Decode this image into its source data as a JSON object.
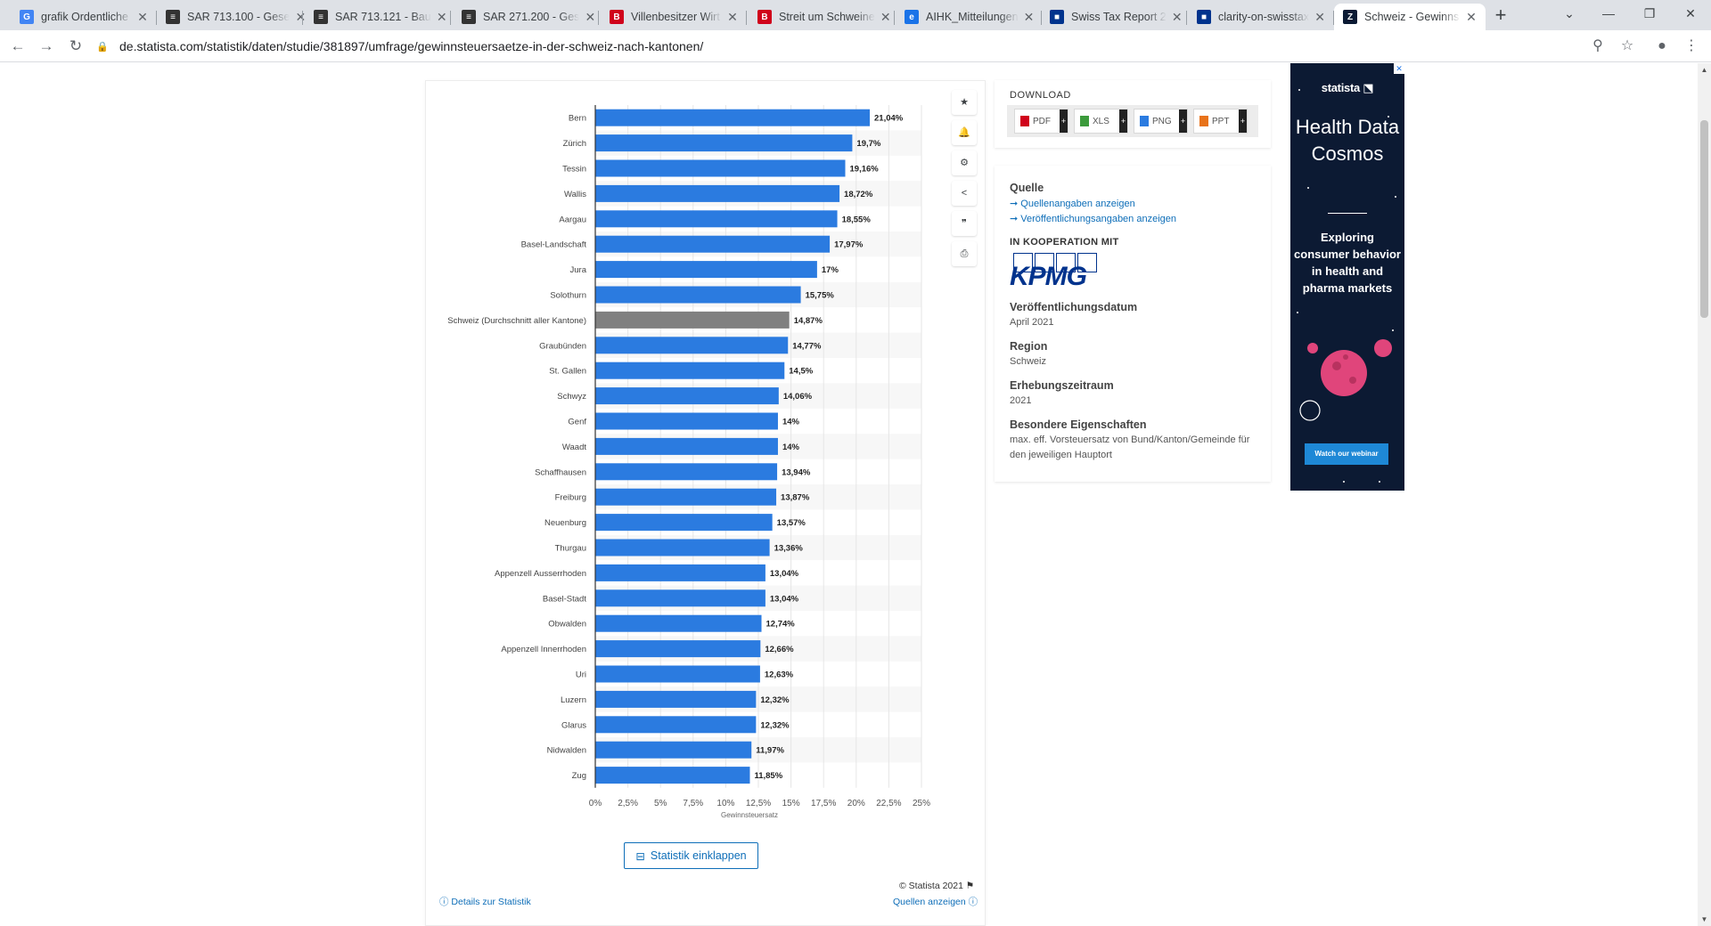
{
  "browser": {
    "tabs": [
      {
        "title": "grafik Ordentliche",
        "favicon": "G",
        "favicon_color": "#4285f4",
        "close": "✕"
      },
      {
        "title": "SAR 713.100 - Gese",
        "favicon": "≡",
        "favicon_color": "#333333",
        "close": "✕"
      },
      {
        "title": "SAR 713.121 - Bau",
        "favicon": "≡",
        "favicon_color": "#333333",
        "close": "✕"
      },
      {
        "title": "SAR 271.200 - Ges",
        "favicon": "≡",
        "favicon_color": "#333333",
        "close": "✕"
      },
      {
        "title": "Villenbesitzer Wirt",
        "favicon": "B",
        "favicon_color": "#d0021b",
        "close": "✕"
      },
      {
        "title": "Streit um Schweine",
        "favicon": "B",
        "favicon_color": "#d0021b",
        "close": "✕"
      },
      {
        "title": "AIHK_Mitteilungen",
        "favicon": "e",
        "favicon_color": "#1a73e8",
        "close": "✕"
      },
      {
        "title": "Swiss Tax Report 2",
        "favicon": "■",
        "favicon_color": "#00338d",
        "close": "✕"
      },
      {
        "title": "clarity-on-swisstax",
        "favicon": "■",
        "favicon_color": "#00338d",
        "close": "✕"
      },
      {
        "title": "Schweiz - Gewinns",
        "favicon": "Z",
        "favicon_color": "#0a1a33",
        "close": "✕"
      }
    ],
    "url": "de.statista.com/statistik/daten/studie/381897/umfrage/gewinnsteuersaetze-in-der-schweiz-nach-kantonen/",
    "new_tab": "+"
  },
  "chart_data": {
    "type": "bar",
    "orientation": "horizontal",
    "categories": [
      "Bern",
      "Zürich",
      "Tessin",
      "Wallis",
      "Aargau",
      "Basel-Landschaft",
      "Jura",
      "Solothurn",
      "Schweiz (Durchschnitt aller Kantone)",
      "Graubünden",
      "St. Gallen",
      "Schwyz",
      "Genf",
      "Waadt",
      "Schaffhausen",
      "Freiburg",
      "Neuenburg",
      "Thurgau",
      "Appenzell Ausserrhoden",
      "Basel-Stadt",
      "Obwalden",
      "Appenzell Innerrhoden",
      "Uri",
      "Luzern",
      "Glarus",
      "Nidwalden",
      "Zug"
    ],
    "values": [
      21.04,
      19.7,
      19.16,
      18.72,
      18.55,
      17.97,
      17,
      15.75,
      14.87,
      14.77,
      14.5,
      14.06,
      14,
      14,
      13.94,
      13.87,
      13.57,
      13.36,
      13.04,
      13.04,
      12.74,
      12.66,
      12.63,
      12.32,
      12.32,
      11.97,
      11.85
    ],
    "value_labels": [
      "21,04%",
      "19,7%",
      "19,16%",
      "18,72%",
      "18,55%",
      "17,97%",
      "17%",
      "15,75%",
      "14,87%",
      "14,77%",
      "14,5%",
      "14,06%",
      "14%",
      "14%",
      "13,94%",
      "13,87%",
      "13,57%",
      "13,36%",
      "13,04%",
      "13,04%",
      "12,74%",
      "12,66%",
      "12,63%",
      "12,32%",
      "12,32%",
      "11,97%",
      "11,85%"
    ],
    "highlight_category": "Schweiz (Durchschnitt aller Kantone)",
    "xlabel": "Gewinnsteuersatz",
    "xlim": [
      0,
      25
    ],
    "x_ticks": [
      "0%",
      "2,5%",
      "5%",
      "7,5%",
      "10%",
      "12,5%",
      "15%",
      "17,5%",
      "20%",
      "22,5%",
      "25%"
    ],
    "bar_color": "#2b7be0",
    "highlight_color": "#808080",
    "grid": true
  },
  "chart_tools": [
    {
      "name": "star-icon",
      "glyph": "★"
    },
    {
      "name": "bell-icon",
      "glyph": "🔔"
    },
    {
      "name": "gear-icon",
      "glyph": "⚙"
    },
    {
      "name": "share-icon",
      "glyph": "<"
    },
    {
      "name": "quote-icon",
      "glyph": "❞"
    },
    {
      "name": "print-icon",
      "glyph": "⎙"
    }
  ],
  "chart_footer": {
    "collapse_label": "Statistik einklappen",
    "copyright": "© Statista 2021",
    "details_link": "Details zur Statistik",
    "sources_link": "Quellen anzeigen"
  },
  "download": {
    "title": "DOWNLOAD",
    "buttons": [
      {
        "label": "PDF",
        "color": "#d0021b"
      },
      {
        "label": "XLS",
        "color": "#3c9b3c"
      },
      {
        "label": "PNG",
        "color": "#2b7be0"
      },
      {
        "label": "PPT",
        "color": "#e8731a"
      }
    ]
  },
  "info": {
    "source_heading": "Quelle",
    "source_link_1": "Quellenangaben anzeigen",
    "source_link_2": "Veröffentlichungsangaben anzeigen",
    "cooperation": "IN KOOPERATION MIT",
    "partner_logo": "KPMG",
    "pub_date_heading": "Veröffentlichungsdatum",
    "pub_date": "April 2021",
    "region_heading": "Region",
    "region": "Schweiz",
    "period_heading": "Erhebungszeitraum",
    "period": "2021",
    "special_heading": "Besondere Eigenschaften",
    "special": "max. eff. Vorsteuersatz von Bund/Kanton/Gemeinde für den jeweiligen Hauptort"
  },
  "ad": {
    "brand": "statista ⬔",
    "headline": "Health Data Cosmos",
    "sub": "Exploring consumer behavior in health and pharma markets",
    "cta": "Watch our webinar"
  }
}
